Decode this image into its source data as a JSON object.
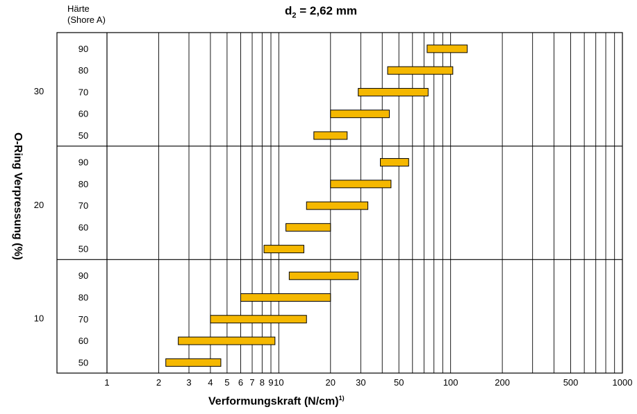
{
  "chart_data": {
    "type": "bar",
    "title_prefix": "d",
    "title_subscript": "2",
    "title_rest": " = 2,62 mm",
    "xlabel": "Verformungskraft (N/cm)",
    "xlabel_superscript": "1)",
    "ylabel": "O-Ring Verpressung (%)",
    "hardness_label_line1": "Härte",
    "hardness_label_line2": "(Shore A)",
    "x_scale": "log",
    "xlim": [
      1,
      1000
    ],
    "x_gridlines": [
      1,
      2,
      3,
      4,
      5,
      6,
      7,
      8,
      9,
      10,
      20,
      30,
      40,
      50,
      60,
      70,
      80,
      90,
      100,
      200,
      300,
      400,
      500,
      600,
      700,
      800,
      900,
      1000
    ],
    "x_ticks": [
      {
        "value": 1,
        "label": "1"
      },
      {
        "value": 2,
        "label": "2"
      },
      {
        "value": 3,
        "label": "3"
      },
      {
        "value": 4,
        "label": "4"
      },
      {
        "value": 5,
        "label": "5"
      },
      {
        "value": 6,
        "label": "6"
      },
      {
        "value": 7,
        "label": "7"
      },
      {
        "value": 8,
        "label": "8"
      },
      {
        "value": 9,
        "label": "9"
      },
      {
        "value": 10,
        "label": "10"
      },
      {
        "value": 20,
        "label": "20"
      },
      {
        "value": 30,
        "label": "30"
      },
      {
        "value": 50,
        "label": "50"
      },
      {
        "value": 100,
        "label": "100"
      },
      {
        "value": 200,
        "label": "200"
      },
      {
        "value": 500,
        "label": "500"
      },
      {
        "value": 1000,
        "label": "1000"
      }
    ],
    "bar_color": "#F5B800",
    "groups": [
      {
        "compression": "30",
        "bars": [
          {
            "hardness": "90",
            "min": 73,
            "max": 125
          },
          {
            "hardness": "80",
            "min": 43,
            "max": 103
          },
          {
            "hardness": "70",
            "min": 29,
            "max": 74
          },
          {
            "hardness": "60",
            "min": 20,
            "max": 44
          },
          {
            "hardness": "50",
            "min": 16,
            "max": 25
          }
        ]
      },
      {
        "compression": "20",
        "bars": [
          {
            "hardness": "90",
            "min": 39,
            "max": 57
          },
          {
            "hardness": "80",
            "min": 20,
            "max": 45
          },
          {
            "hardness": "70",
            "min": 14.5,
            "max": 33
          },
          {
            "hardness": "60",
            "min": 11,
            "max": 20
          },
          {
            "hardness": "50",
            "min": 8.2,
            "max": 14
          }
        ]
      },
      {
        "compression": "10",
        "bars": [
          {
            "hardness": "90",
            "min": 11.5,
            "max": 29
          },
          {
            "hardness": "80",
            "min": 6,
            "max": 20
          },
          {
            "hardness": "70",
            "min": 4,
            "max": 14.5
          },
          {
            "hardness": "60",
            "min": 2.6,
            "max": 9.5
          },
          {
            "hardness": "50",
            "min": 2.2,
            "max": 4.6
          }
        ]
      }
    ]
  }
}
